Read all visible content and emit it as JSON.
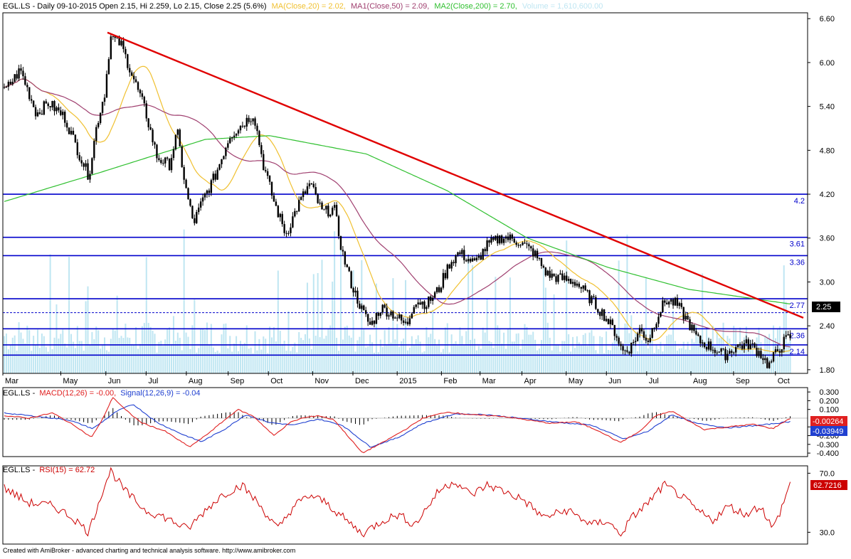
{
  "app": {
    "footer": "Created with AmiBroker - advanced charting and technical analysis software. http://www.amibroker.com"
  },
  "colors": {
    "price_bar": "#000000",
    "ma20": "#f0c030",
    "ma50": "#a04070",
    "ma200": "#30c030",
    "volume": "#bfe6f2",
    "hline": "#0000cc",
    "trendline": "#e00000",
    "macd": "#e02020",
    "signal": "#2040d0",
    "rsi": "#cc0000"
  },
  "price_panel": {
    "title": {
      "ticker": "EGL.LS - Daily 09-10-2015 Open 2.15, Hi 2.259, Lo 2.15, Close 2.25 (5.6%)",
      "ma20": "MA(Close,20) = 2.02,",
      "ma50": "MA1(Close,50) = 2.09,",
      "ma200": "MA2(Close,200) = 2.70,",
      "volume": "Volume = 1,610,600.00"
    },
    "last_price": "2.25"
  },
  "macd_panel": {
    "title": {
      "ticker": "EGL.LS -",
      "macd": "MACD(12,26) = -0.00,",
      "signal": "Signal(12,26,9) = -0.04"
    },
    "macd_badge": "-0.00264",
    "signal_badge": "-0.03949"
  },
  "rsi_panel": {
    "title": {
      "ticker": "EGL.LS -",
      "rsi": "RSI(15) = 62.72"
    },
    "rsi_badge": "62.7216"
  },
  "chart_data": [
    {
      "type": "candlestick",
      "panel": "price",
      "x_labels": [
        "Mar",
        "May",
        "Jun",
        "Jul",
        "Aug",
        "Sep",
        "Oct",
        "Nov",
        "Dec",
        "2015",
        "Feb",
        "Mar",
        "Apr",
        "May",
        "Jun",
        "Jul",
        "Aug",
        "Sep",
        "Oct"
      ],
      "y_ticks": [
        1.8,
        2.4,
        3.0,
        3.6,
        4.2,
        4.8,
        5.4,
        6.0,
        6.6
      ],
      "ylim": [
        1.75,
        6.68
      ],
      "horizontal_lines": [
        {
          "value": 4.2,
          "label": "4.2",
          "style": "solid"
        },
        {
          "value": 3.61,
          "label": "3.61",
          "style": "solid"
        },
        {
          "value": 3.36,
          "label": "3.36",
          "style": "solid"
        },
        {
          "value": 2.77,
          "label": "2.77",
          "style": "solid"
        },
        {
          "value": 2.58,
          "label": "",
          "style": "dashed"
        },
        {
          "value": 2.36,
          "label": "2.36",
          "style": "solid"
        },
        {
          "value": 2.14,
          "label": "2.14",
          "style": "solid"
        },
        {
          "value": 2.0,
          "label": "",
          "style": "solid"
        }
      ],
      "trendline": {
        "start": {
          "x": 0.13,
          "y": 6.41
        },
        "end": {
          "x": 1.0,
          "y": 2.51
        }
      },
      "close_path": [
        {
          "t": 0.0,
          "v": 5.6
        },
        {
          "t": 0.02,
          "v": 5.9
        },
        {
          "t": 0.04,
          "v": 5.3
        },
        {
          "t": 0.055,
          "v": 5.45
        },
        {
          "t": 0.075,
          "v": 5.25
        },
        {
          "t": 0.095,
          "v": 4.7
        },
        {
          "t": 0.105,
          "v": 4.45
        },
        {
          "t": 0.115,
          "v": 5.15
        },
        {
          "t": 0.125,
          "v": 5.6
        },
        {
          "t": 0.132,
          "v": 6.35
        },
        {
          "t": 0.145,
          "v": 6.25
        },
        {
          "t": 0.16,
          "v": 5.8
        },
        {
          "t": 0.175,
          "v": 5.35
        },
        {
          "t": 0.19,
          "v": 4.7
        },
        {
          "t": 0.205,
          "v": 4.6
        },
        {
          "t": 0.215,
          "v": 5.05
        },
        {
          "t": 0.225,
          "v": 4.3
        },
        {
          "t": 0.235,
          "v": 3.8
        },
        {
          "t": 0.248,
          "v": 4.15
        },
        {
          "t": 0.262,
          "v": 4.45
        },
        {
          "t": 0.28,
          "v": 5.0
        },
        {
          "t": 0.3,
          "v": 5.2
        },
        {
          "t": 0.31,
          "v": 5.3
        },
        {
          "t": 0.322,
          "v": 4.6
        },
        {
          "t": 0.335,
          "v": 4.1
        },
        {
          "t": 0.35,
          "v": 3.65
        },
        {
          "t": 0.365,
          "v": 4.05
        },
        {
          "t": 0.38,
          "v": 4.35
        },
        {
          "t": 0.395,
          "v": 3.95
        },
        {
          "t": 0.41,
          "v": 4.0
        },
        {
          "t": 0.42,
          "v": 3.4
        },
        {
          "t": 0.432,
          "v": 2.95
        },
        {
          "t": 0.445,
          "v": 2.6
        },
        {
          "t": 0.455,
          "v": 2.4
        },
        {
          "t": 0.468,
          "v": 2.65
        },
        {
          "t": 0.485,
          "v": 2.55
        },
        {
          "t": 0.5,
          "v": 2.4
        },
        {
          "t": 0.51,
          "v": 2.75
        },
        {
          "t": 0.525,
          "v": 2.7
        },
        {
          "t": 0.54,
          "v": 2.9
        },
        {
          "t": 0.553,
          "v": 3.25
        },
        {
          "t": 0.565,
          "v": 3.4
        },
        {
          "t": 0.585,
          "v": 3.25
        },
        {
          "t": 0.6,
          "v": 3.5
        },
        {
          "t": 0.62,
          "v": 3.62
        },
        {
          "t": 0.64,
          "v": 3.55
        },
        {
          "t": 0.658,
          "v": 3.4
        },
        {
          "t": 0.675,
          "v": 3.1
        },
        {
          "t": 0.69,
          "v": 3.05
        },
        {
          "t": 0.71,
          "v": 3.0
        },
        {
          "t": 0.73,
          "v": 2.75
        },
        {
          "t": 0.745,
          "v": 2.55
        },
        {
          "t": 0.76,
          "v": 2.3
        },
        {
          "t": 0.768,
          "v": 2.05
        },
        {
          "t": 0.778,
          "v": 2.1
        },
        {
          "t": 0.79,
          "v": 2.35
        },
        {
          "t": 0.8,
          "v": 2.2
        },
        {
          "t": 0.812,
          "v": 2.55
        },
        {
          "t": 0.822,
          "v": 2.75
        },
        {
          "t": 0.835,
          "v": 2.7
        },
        {
          "t": 0.85,
          "v": 2.45
        },
        {
          "t": 0.862,
          "v": 2.2
        },
        {
          "t": 0.88,
          "v": 2.1
        },
        {
          "t": 0.895,
          "v": 2.0
        },
        {
          "t": 0.91,
          "v": 2.12
        },
        {
          "t": 0.925,
          "v": 2.15
        },
        {
          "t": 0.94,
          "v": 2.02
        },
        {
          "t": 0.95,
          "v": 1.85
        },
        {
          "t": 0.96,
          "v": 2.05
        },
        {
          "t": 0.97,
          "v": 2.2
        },
        {
          "t": 0.976,
          "v": 2.25
        }
      ]
    },
    {
      "type": "line",
      "panel": "macd",
      "y_ticks": [
        0.3,
        0.2,
        0.1,
        -0.1,
        -0.2,
        -0.3,
        -0.4
      ],
      "ylim": [
        -0.44,
        0.35
      ],
      "series": [
        {
          "name": "MACD(12,26)",
          "last": -0.00264
        },
        {
          "name": "Signal(12,26,9)",
          "last": -0.03949
        }
      ],
      "macd_path": [
        {
          "t": 0.0,
          "v": 0.03
        },
        {
          "t": 0.03,
          "v": 0.0
        },
        {
          "t": 0.06,
          "v": 0.06
        },
        {
          "t": 0.09,
          "v": -0.1
        },
        {
          "t": 0.108,
          "v": -0.22
        },
        {
          "t": 0.12,
          "v": -0.05
        },
        {
          "t": 0.135,
          "v": 0.24
        },
        {
          "t": 0.15,
          "v": 0.1
        },
        {
          "t": 0.17,
          "v": -0.05
        },
        {
          "t": 0.2,
          "v": -0.15
        },
        {
          "t": 0.23,
          "v": -0.33
        },
        {
          "t": 0.25,
          "v": -0.2
        },
        {
          "t": 0.27,
          "v": -0.05
        },
        {
          "t": 0.29,
          "v": 0.1
        },
        {
          "t": 0.31,
          "v": 0.02
        },
        {
          "t": 0.335,
          "v": -0.2
        },
        {
          "t": 0.355,
          "v": -0.05
        },
        {
          "t": 0.37,
          "v": 0.0
        },
        {
          "t": 0.39,
          "v": 0.03
        },
        {
          "t": 0.41,
          "v": -0.02
        },
        {
          "t": 0.445,
          "v": -0.4
        },
        {
          "t": 0.47,
          "v": -0.28
        },
        {
          "t": 0.5,
          "v": -0.12
        },
        {
          "t": 0.52,
          "v": 0.0
        },
        {
          "t": 0.55,
          "v": 0.07
        },
        {
          "t": 0.58,
          "v": 0.04
        },
        {
          "t": 0.62,
          "v": 0.02
        },
        {
          "t": 0.65,
          "v": -0.02
        },
        {
          "t": 0.68,
          "v": -0.06
        },
        {
          "t": 0.71,
          "v": -0.04
        },
        {
          "t": 0.74,
          "v": -0.15
        },
        {
          "t": 0.765,
          "v": -0.28
        },
        {
          "t": 0.79,
          "v": -0.15
        },
        {
          "t": 0.81,
          "v": 0.03
        },
        {
          "t": 0.83,
          "v": 0.08
        },
        {
          "t": 0.85,
          "v": -0.03
        },
        {
          "t": 0.87,
          "v": -0.13
        },
        {
          "t": 0.9,
          "v": -0.1
        },
        {
          "t": 0.93,
          "v": -0.07
        },
        {
          "t": 0.955,
          "v": -0.12
        },
        {
          "t": 0.976,
          "v": -0.003
        }
      ],
      "signal_path": [
        {
          "t": 0.0,
          "v": 0.06
        },
        {
          "t": 0.04,
          "v": 0.02
        },
        {
          "t": 0.08,
          "v": -0.02
        },
        {
          "t": 0.11,
          "v": -0.12
        },
        {
          "t": 0.14,
          "v": 0.08
        },
        {
          "t": 0.16,
          "v": 0.16
        },
        {
          "t": 0.19,
          "v": -0.05
        },
        {
          "t": 0.22,
          "v": -0.18
        },
        {
          "t": 0.245,
          "v": -0.27
        },
        {
          "t": 0.275,
          "v": -0.12
        },
        {
          "t": 0.3,
          "v": 0.04
        },
        {
          "t": 0.33,
          "v": -0.05
        },
        {
          "t": 0.36,
          "v": -0.08
        },
        {
          "t": 0.39,
          "v": -0.01
        },
        {
          "t": 0.42,
          "v": -0.08
        },
        {
          "t": 0.455,
          "v": -0.33
        },
        {
          "t": 0.49,
          "v": -0.22
        },
        {
          "t": 0.52,
          "v": -0.06
        },
        {
          "t": 0.56,
          "v": 0.05
        },
        {
          "t": 0.6,
          "v": 0.04
        },
        {
          "t": 0.64,
          "v": 0.0
        },
        {
          "t": 0.69,
          "v": -0.05
        },
        {
          "t": 0.73,
          "v": -0.08
        },
        {
          "t": 0.77,
          "v": -0.24
        },
        {
          "t": 0.8,
          "v": -0.15
        },
        {
          "t": 0.83,
          "v": 0.04
        },
        {
          "t": 0.86,
          "v": -0.06
        },
        {
          "t": 0.9,
          "v": -0.11
        },
        {
          "t": 0.94,
          "v": -0.08
        },
        {
          "t": 0.976,
          "v": -0.04
        }
      ]
    },
    {
      "type": "line",
      "panel": "rsi",
      "y_ticks": [
        70.0,
        30.0
      ],
      "ylim": [
        22,
        75
      ],
      "series": [
        {
          "name": "RSI(15)",
          "last": 62.72
        }
      ],
      "rsi_path": [
        {
          "t": 0.0,
          "v": 60
        },
        {
          "t": 0.03,
          "v": 50
        },
        {
          "t": 0.06,
          "v": 48
        },
        {
          "t": 0.085,
          "v": 40
        },
        {
          "t": 0.105,
          "v": 30
        },
        {
          "t": 0.12,
          "v": 55
        },
        {
          "t": 0.132,
          "v": 72
        },
        {
          "t": 0.15,
          "v": 58
        },
        {
          "t": 0.175,
          "v": 45
        },
        {
          "t": 0.2,
          "v": 40
        },
        {
          "t": 0.228,
          "v": 32
        },
        {
          "t": 0.25,
          "v": 45
        },
        {
          "t": 0.27,
          "v": 55
        },
        {
          "t": 0.295,
          "v": 62
        },
        {
          "t": 0.315,
          "v": 50
        },
        {
          "t": 0.34,
          "v": 32
        },
        {
          "t": 0.36,
          "v": 48
        },
        {
          "t": 0.38,
          "v": 55
        },
        {
          "t": 0.4,
          "v": 50
        },
        {
          "t": 0.425,
          "v": 38
        },
        {
          "t": 0.445,
          "v": 29
        },
        {
          "t": 0.47,
          "v": 38
        },
        {
          "t": 0.49,
          "v": 42
        },
        {
          "t": 0.51,
          "v": 35
        },
        {
          "t": 0.54,
          "v": 58
        },
        {
          "t": 0.56,
          "v": 65
        },
        {
          "t": 0.58,
          "v": 55
        },
        {
          "t": 0.6,
          "v": 62
        },
        {
          "t": 0.62,
          "v": 58
        },
        {
          "t": 0.645,
          "v": 52
        },
        {
          "t": 0.67,
          "v": 40
        },
        {
          "t": 0.7,
          "v": 45
        },
        {
          "t": 0.73,
          "v": 35
        },
        {
          "t": 0.75,
          "v": 38
        },
        {
          "t": 0.765,
          "v": 28
        },
        {
          "t": 0.78,
          "v": 40
        },
        {
          "t": 0.8,
          "v": 50
        },
        {
          "t": 0.82,
          "v": 62
        },
        {
          "t": 0.84,
          "v": 55
        },
        {
          "t": 0.86,
          "v": 45
        },
        {
          "t": 0.88,
          "v": 38
        },
        {
          "t": 0.9,
          "v": 48
        },
        {
          "t": 0.92,
          "v": 42
        },
        {
          "t": 0.94,
          "v": 48
        },
        {
          "t": 0.955,
          "v": 32
        },
        {
          "t": 0.965,
          "v": 45
        },
        {
          "t": 0.976,
          "v": 62.7
        }
      ]
    }
  ]
}
